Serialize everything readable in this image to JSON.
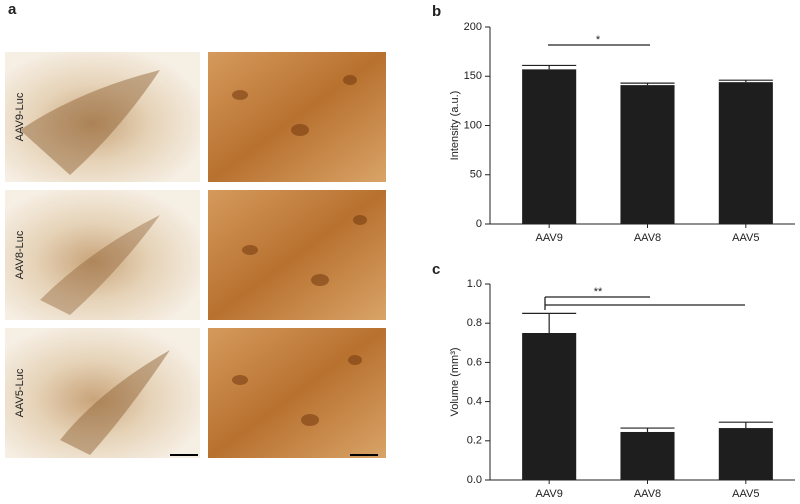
{
  "figure": {
    "panel_a": {
      "label": "a",
      "row_labels": [
        "AAV9-Luc",
        "AAV8-Luc",
        "AAV5-Luc"
      ]
    }
  },
  "chart_data": [
    {
      "type": "bar",
      "label": "b",
      "y_label": "Intensity (a.u.)",
      "categories": [
        "AAV9",
        "AAV8",
        "AAV5"
      ],
      "values": [
        157,
        141,
        144
      ],
      "errors": [
        4,
        2,
        2
      ],
      "color": "#1e1e1e",
      "ylim": [
        0,
        200
      ],
      "yticks": [
        0,
        50,
        100,
        150,
        200
      ],
      "annotations": [
        "*"
      ]
    },
    {
      "type": "bar",
      "label": "c",
      "y_label": "Volume (mm³)",
      "categories": [
        "AAV9",
        "AAV8",
        "AAV5"
      ],
      "values": [
        0.75,
        0.245,
        0.265
      ],
      "errors": [
        0.1,
        0.02,
        0.03
      ],
      "color": "#1e1e1e",
      "ylim": [
        0,
        1.0
      ],
      "yticks": [
        {
          "value": 0,
          "label": "0.0"
        },
        0.2,
        0.4,
        0.6,
        0.8,
        {
          "value": 1,
          "label": "1.0"
        }
      ],
      "annotations": [
        "**"
      ]
    }
  ]
}
